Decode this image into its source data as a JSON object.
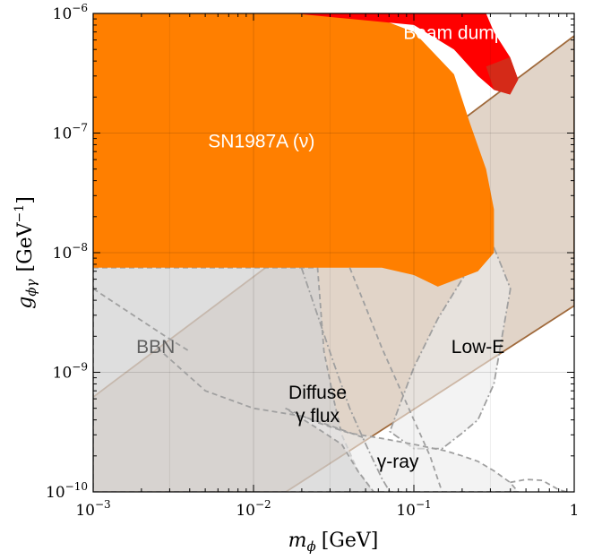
{
  "chart_data": {
    "type": "area",
    "xscale": "log",
    "yscale": "log",
    "xlim": [
      0.001,
      1
    ],
    "ylim": [
      1e-10,
      1e-06
    ],
    "grid": true,
    "xlabel": {
      "base": "m",
      "sub": "ϕ",
      "unit": "[GeV]"
    },
    "ylabel": {
      "base": "g",
      "sub": "ϕγ",
      "unit_open": "[GeV",
      "unit_exp": "−1",
      "unit_close": "]"
    },
    "x_ticks": [
      {
        "value": 0.001,
        "base": "10",
        "exp": "−3"
      },
      {
        "value": 0.01,
        "base": "10",
        "exp": "−2"
      },
      {
        "value": 0.1,
        "base": "10",
        "exp": "−1"
      },
      {
        "value": 1,
        "base": "1",
        "exp": ""
      }
    ],
    "y_ticks": [
      {
        "value": 1e-10,
        "base": "10",
        "exp": "−10"
      },
      {
        "value": 1e-09,
        "base": "10",
        "exp": "−9"
      },
      {
        "value": 1e-08,
        "base": "10",
        "exp": "−8"
      },
      {
        "value": 1e-07,
        "base": "10",
        "exp": "−7"
      },
      {
        "value": 1e-06,
        "base": "10",
        "exp": "−6"
      }
    ],
    "regions": [
      {
        "id": "low-e-band",
        "fill": "#c9b09a",
        "opacity": 0.55,
        "stroke": "#a06a3c",
        "dash": "",
        "points": [
          [
            0.001,
            6.2e-10
          ],
          [
            1,
            6.5e-07
          ],
          [
            1,
            3.6e-09
          ],
          [
            0.0159,
            1e-10
          ],
          [
            0.001,
            1e-10
          ]
        ]
      },
      {
        "id": "bbn",
        "fill": "#d3d3d3",
        "opacity": 0.75,
        "stroke": "#a0a0a0",
        "dash": "6 4",
        "points": [
          [
            0.001,
            7.5e-09
          ],
          [
            0.0251,
            7.5e-09
          ],
          [
            0.0275,
            1.5e-09
          ],
          [
            0.0316,
            6e-10
          ],
          [
            0.0355,
            3e-10
          ],
          [
            0.0447,
            1.5e-10
          ],
          [
            0.0562,
            1e-10
          ],
          [
            0.001,
            1e-10
          ]
        ]
      },
      {
        "id": "low-e-contour",
        "fill": "#ebebeb",
        "opacity": 0.6,
        "stroke": "#a0a0a0",
        "dash": "8 3 2 3",
        "points": [
          [
            0.316,
            1.1e-08
          ],
          [
            0.355,
            7.5e-09
          ],
          [
            0.4,
            5e-09
          ],
          [
            0.355,
            2e-09
          ],
          [
            0.316,
            8e-10
          ],
          [
            0.251,
            4e-10
          ],
          [
            0.2,
            3.1e-10
          ],
          [
            0.15,
            2.3e-10
          ],
          [
            0.1,
            2.3e-10
          ],
          [
            0.0708,
            3.2e-10
          ],
          [
            0.1,
            1.1e-09
          ],
          [
            0.141,
            2.8e-09
          ],
          [
            0.2,
            6e-09
          ],
          [
            0.282,
            1.2e-08
          ]
        ]
      },
      {
        "id": "gamma-ray",
        "fill": "#ebebeb",
        "opacity": 0.6,
        "stroke": "#a0a0a0",
        "dash": "6 4",
        "points": [
          [
            0.0158,
            5e-10
          ],
          [
            0.025,
            3.8e-10
          ],
          [
            0.0398,
            3.1e-10
          ],
          [
            0.0631,
            2.8e-10
          ],
          [
            0.1,
            2.5e-10
          ],
          [
            0.158,
            2.2e-10
          ],
          [
            0.2,
            2e-10
          ],
          [
            0.251,
            1.8e-10
          ],
          [
            0.316,
            1.5e-10
          ],
          [
            0.398,
            1.2e-10
          ],
          [
            0.447,
            1e-10
          ],
          [
            0.0562,
            1e-10
          ],
          [
            0.0447,
            1.5e-10
          ],
          [
            0.0355,
            2.5e-10
          ],
          [
            0.025,
            3.4e-10
          ]
        ]
      },
      {
        "id": "sn1987a",
        "fill": "#ff7f00",
        "opacity": 1,
        "stroke": "",
        "dash": "",
        "points": [
          [
            0.001,
            7.5e-09
          ],
          [
            0.001,
            1e-06
          ],
          [
            0.05,
            1e-06
          ],
          [
            0.1,
            7e-07
          ],
          [
            0.178,
            3.1e-07
          ],
          [
            0.224,
            1.2e-07
          ],
          [
            0.282,
            5e-08
          ],
          [
            0.316,
            2.3e-08
          ],
          [
            0.316,
            1e-08
          ],
          [
            0.251,
            7e-09
          ],
          [
            0.141,
            5.2e-09
          ],
          [
            0.1,
            6.5e-09
          ],
          [
            0.0631,
            7.5e-09
          ]
        ]
      },
      {
        "id": "beam-dump",
        "fill": "#ff0000",
        "opacity": 1,
        "stroke": "",
        "dash": "",
        "points": [
          [
            0.0178,
            1e-06
          ],
          [
            0.282,
            1e-06
          ],
          [
            0.316,
            7e-07
          ],
          [
            0.398,
            4.3e-07
          ],
          [
            0.447,
            2.8e-07
          ],
          [
            0.398,
            2.1e-07
          ],
          [
            0.316,
            2.3e-07
          ],
          [
            0.251,
            3e-07
          ],
          [
            0.178,
            5e-07
          ],
          [
            0.1,
            8e-07
          ]
        ]
      },
      {
        "id": "beam-dump-overlap",
        "fill": "#d52a18",
        "opacity": 1,
        "stroke": "",
        "dash": "",
        "points": [
          [
            0.282,
            3.6e-07
          ],
          [
            0.398,
            4.3e-07
          ],
          [
            0.447,
            2.8e-07
          ],
          [
            0.398,
            2.1e-07
          ],
          [
            0.316,
            2.3e-07
          ]
        ]
      }
    ],
    "curves": [
      {
        "id": "bbn-upper-boundary",
        "stroke": "#a0a0a0",
        "dash": "6 4",
        "points": [
          [
            0.001,
            5e-09
          ],
          [
            0.00178,
            3e-09
          ],
          [
            0.00282,
            2e-09
          ],
          [
            0.00398,
            1.5e-09
          ]
        ]
      },
      {
        "id": "diffuse-flux-left",
        "stroke": "#a0a0a0",
        "dash": "8 3 2 3",
        "points": [
          [
            0.0199,
            7.5e-09
          ],
          [
            0.0251,
            3e-09
          ],
          [
            0.0316,
            1.2e-09
          ],
          [
            0.0398,
            5e-10
          ],
          [
            0.0501,
            2.5e-10
          ],
          [
            0.0631,
            1.3e-10
          ],
          [
            0.0708,
            1e-10
          ]
        ]
      },
      {
        "id": "diffuse-flux-right",
        "stroke": "#a0a0a0",
        "dash": "6 4",
        "points": [
          [
            0.0398,
            7.5e-09
          ],
          [
            0.0501,
            3.5e-09
          ],
          [
            0.0631,
            1.6e-09
          ],
          [
            0.0794,
            8e-10
          ],
          [
            0.1,
            4e-10
          ],
          [
            0.126,
            2e-10
          ],
          [
            0.15,
            1e-10
          ]
        ]
      },
      {
        "id": "diffuse-flux-lower",
        "stroke": "#a0a0a0",
        "dash": "6 4",
        "points": [
          [
            0.00251,
            1.6e-09
          ],
          [
            0.00501,
            7e-10
          ],
          [
            0.01,
            5e-10
          ],
          [
            0.02,
            4.3e-10
          ],
          [
            0.0316,
            3.5e-10
          ],
          [
            0.0501,
            2.8e-10
          ]
        ]
      },
      {
        "id": "gamma-ray-right-edge",
        "stroke": "#a0a0a0",
        "dash": "6 4",
        "points": [
          [
            0.398,
            1.2e-10
          ],
          [
            0.501,
            1.27e-10
          ],
          [
            0.631,
            1.25e-10
          ],
          [
            0.794,
            1.05e-10
          ],
          [
            0.891,
            1e-10
          ]
        ]
      }
    ],
    "labels": [
      {
        "id": "beam-dump-label",
        "text": "Beam dump",
        "color": "#ffffff",
        "x": 0.178,
        "y": 6.1e-07
      },
      {
        "id": "sn1987a-label",
        "text": "SN1987A (ν)",
        "color": "#ffffff",
        "x": 0.0112,
        "y": 7.6e-08
      },
      {
        "id": "bbn-label",
        "text": "BBN",
        "color": "#606060",
        "x": 0.00245,
        "y": 1.45e-09
      },
      {
        "id": "low-e-label",
        "text": "Low-E",
        "color": "#000000",
        "x": 0.251,
        "y": 1.45e-09
      },
      {
        "id": "diffuse-label-1",
        "text": "Diffuse",
        "color": "#000000",
        "x": 0.0251,
        "y": 6e-10
      },
      {
        "id": "diffuse-label-2",
        "text": "γ flux",
        "color": "#000000",
        "x": 0.0251,
        "y": 3.85e-10
      },
      {
        "id": "gamma-ray-label",
        "text": "γ-ray",
        "color": "#000000",
        "x": 0.0794,
        "y": 1.6e-10
      }
    ]
  }
}
